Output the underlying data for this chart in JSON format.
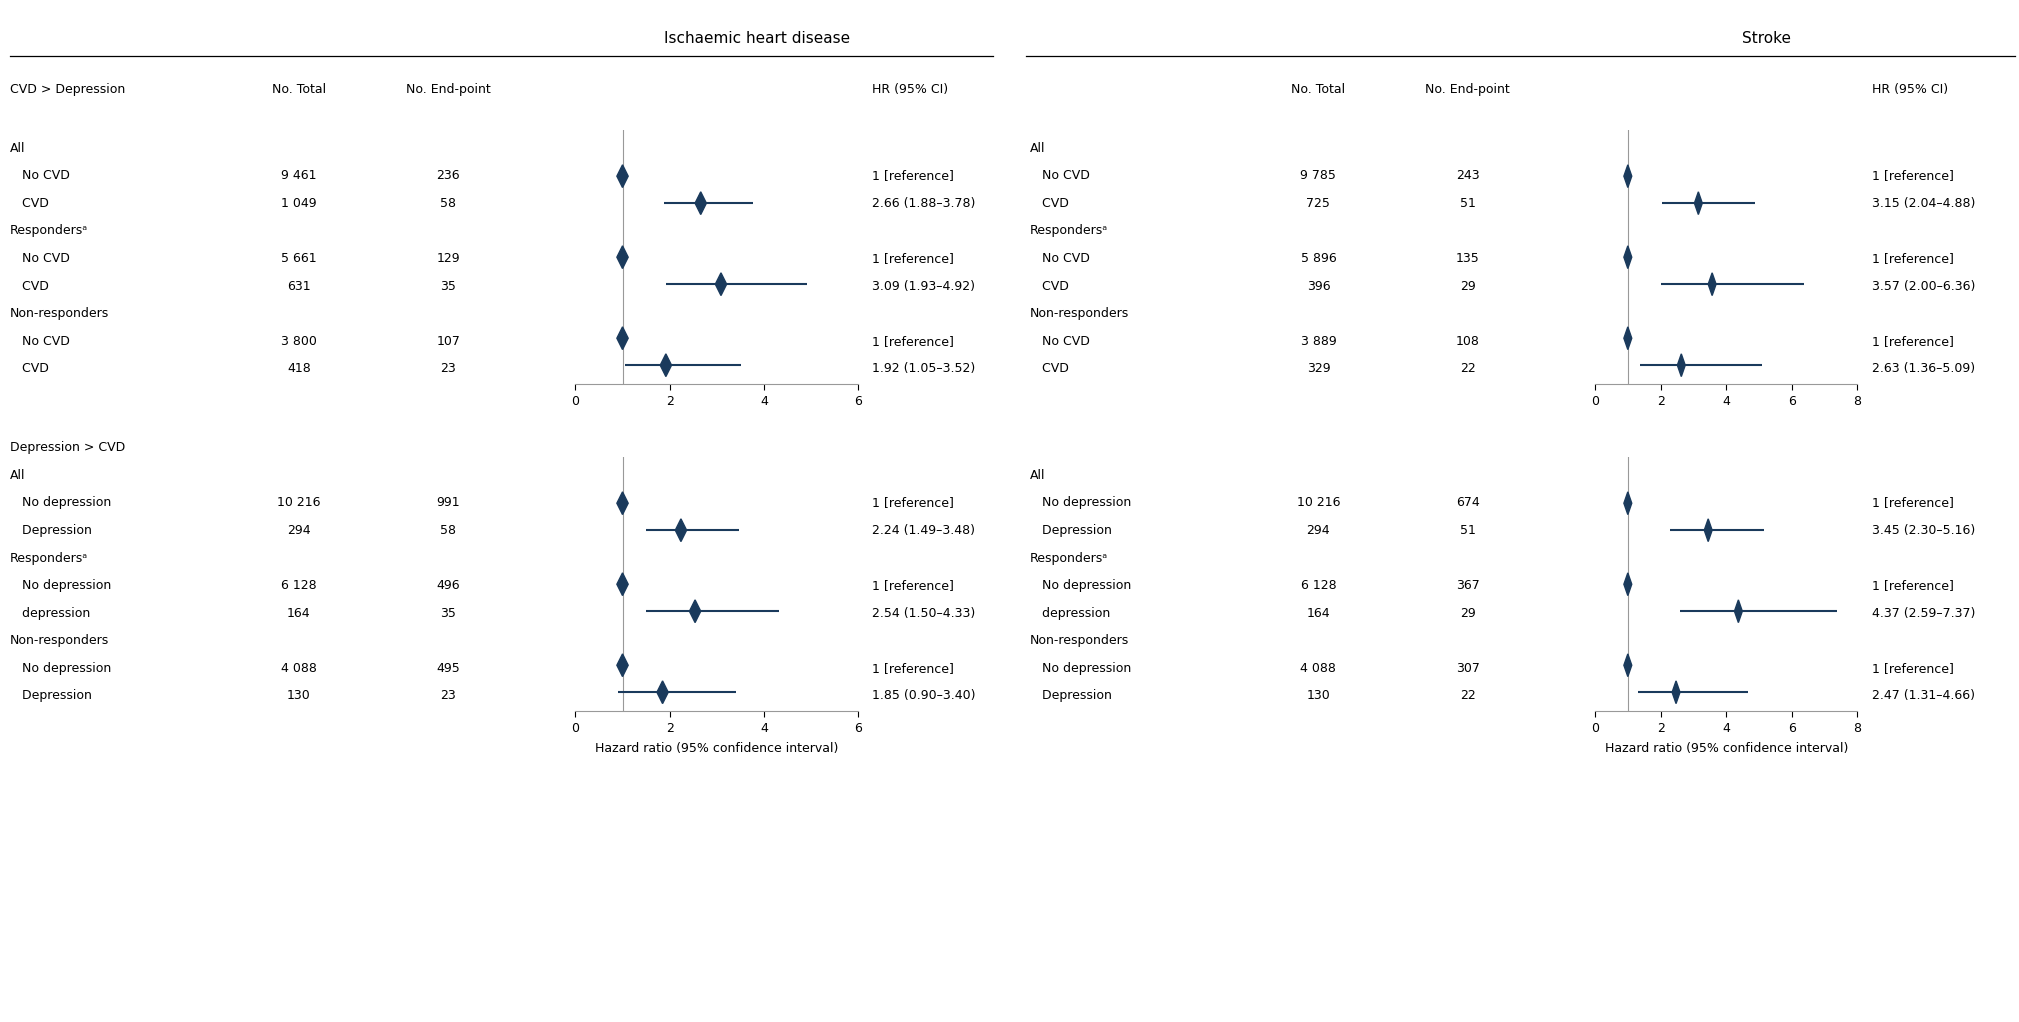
{
  "title_ihd": "Ischaemic heart disease",
  "title_stroke": "Stroke",
  "bg_color": "#ffffff",
  "diamond_color": "#1a3a5c",
  "line_color": "#1a3a5c",
  "text_color": "#000000",
  "axis_color": "#999999",
  "section1_header": "CVD > Depression",
  "section2_header": "Depression > CVD",
  "ihd_rows": [
    {
      "label": "All",
      "indent": 0,
      "no_total": "",
      "no_ep": "",
      "hr": null,
      "lo": null,
      "hi": null,
      "hr_text": "",
      "is_header": true
    },
    {
      "label": "No CVD",
      "indent": 1,
      "no_total": "9 461",
      "no_ep": "236",
      "hr": 1.0,
      "lo": null,
      "hi": null,
      "hr_text": "1 [reference]",
      "is_header": false
    },
    {
      "label": "CVD",
      "indent": 1,
      "no_total": "1 049",
      "no_ep": "58",
      "hr": 2.66,
      "lo": 1.88,
      "hi": 3.78,
      "hr_text": "2.66 (1.88–3.78)",
      "is_header": false
    },
    {
      "label": "Respondersᵃ",
      "indent": 0,
      "no_total": "",
      "no_ep": "",
      "hr": null,
      "lo": null,
      "hi": null,
      "hr_text": "",
      "is_header": true
    },
    {
      "label": "No CVD",
      "indent": 1,
      "no_total": "5 661",
      "no_ep": "129",
      "hr": 1.0,
      "lo": null,
      "hi": null,
      "hr_text": "1 [reference]",
      "is_header": false
    },
    {
      "label": "CVD",
      "indent": 1,
      "no_total": "631",
      "no_ep": "35",
      "hr": 3.09,
      "lo": 1.93,
      "hi": 4.92,
      "hr_text": "3.09 (1.93–4.92)",
      "is_header": false
    },
    {
      "label": "Non-responders",
      "indent": 0,
      "no_total": "",
      "no_ep": "",
      "hr": null,
      "lo": null,
      "hi": null,
      "hr_text": "",
      "is_header": true
    },
    {
      "label": "No CVD",
      "indent": 1,
      "no_total": "3 800",
      "no_ep": "107",
      "hr": 1.0,
      "lo": null,
      "hi": null,
      "hr_text": "1 [reference]",
      "is_header": false
    },
    {
      "label": "CVD",
      "indent": 1,
      "no_total": "418",
      "no_ep": "23",
      "hr": 1.92,
      "lo": 1.05,
      "hi": 3.52,
      "hr_text": "1.92 (1.05–3.52)",
      "is_header": false
    }
  ],
  "ihd_rows2": [
    {
      "label": "All",
      "indent": 0,
      "no_total": "",
      "no_ep": "",
      "hr": null,
      "lo": null,
      "hi": null,
      "hr_text": "",
      "is_header": true
    },
    {
      "label": "No depression",
      "indent": 1,
      "no_total": "10 216",
      "no_ep": "991",
      "hr": 1.0,
      "lo": null,
      "hi": null,
      "hr_text": "1 [reference]",
      "is_header": false
    },
    {
      "label": "Depression",
      "indent": 1,
      "no_total": "294",
      "no_ep": "58",
      "hr": 2.24,
      "lo": 1.49,
      "hi": 3.48,
      "hr_text": "2.24 (1.49–3.48)",
      "is_header": false
    },
    {
      "label": "Respondersᵃ",
      "indent": 0,
      "no_total": "",
      "no_ep": "",
      "hr": null,
      "lo": null,
      "hi": null,
      "hr_text": "",
      "is_header": true
    },
    {
      "label": "No depression",
      "indent": 1,
      "no_total": "6 128",
      "no_ep": "496",
      "hr": 1.0,
      "lo": null,
      "hi": null,
      "hr_text": "1 [reference]",
      "is_header": false
    },
    {
      "label": "depression",
      "indent": 1,
      "no_total": "164",
      "no_ep": "35",
      "hr": 2.54,
      "lo": 1.5,
      "hi": 4.33,
      "hr_text": "2.54 (1.50–4.33)",
      "is_header": false
    },
    {
      "label": "Non-responders",
      "indent": 0,
      "no_total": "",
      "no_ep": "",
      "hr": null,
      "lo": null,
      "hi": null,
      "hr_text": "",
      "is_header": true
    },
    {
      "label": "No depression",
      "indent": 1,
      "no_total": "4 088",
      "no_ep": "495",
      "hr": 1.0,
      "lo": null,
      "hi": null,
      "hr_text": "1 [reference]",
      "is_header": false
    },
    {
      "label": "Depression",
      "indent": 1,
      "no_total": "130",
      "no_ep": "23",
      "hr": 1.85,
      "lo": 0.9,
      "hi": 3.4,
      "hr_text": "1.85 (0.90–3.40)",
      "is_header": false
    }
  ],
  "stroke_rows": [
    {
      "label": "All",
      "indent": 0,
      "no_total": "",
      "no_ep": "",
      "hr": null,
      "lo": null,
      "hi": null,
      "hr_text": "",
      "is_header": true
    },
    {
      "label": "No CVD",
      "indent": 1,
      "no_total": "9 785",
      "no_ep": "243",
      "hr": 1.0,
      "lo": null,
      "hi": null,
      "hr_text": "1 [reference]",
      "is_header": false
    },
    {
      "label": "CVD",
      "indent": 1,
      "no_total": "725",
      "no_ep": "51",
      "hr": 3.15,
      "lo": 2.04,
      "hi": 4.88,
      "hr_text": "3.15 (2.04–4.88)",
      "is_header": false
    },
    {
      "label": "Respondersᵃ",
      "indent": 0,
      "no_total": "",
      "no_ep": "",
      "hr": null,
      "lo": null,
      "hi": null,
      "hr_text": "",
      "is_header": true
    },
    {
      "label": "No CVD",
      "indent": 1,
      "no_total": "5 896",
      "no_ep": "135",
      "hr": 1.0,
      "lo": null,
      "hi": null,
      "hr_text": "1 [reference]",
      "is_header": false
    },
    {
      "label": "CVD",
      "indent": 1,
      "no_total": "396",
      "no_ep": "29",
      "hr": 3.57,
      "lo": 2.0,
      "hi": 6.36,
      "hr_text": "3.57 (2.00–6.36)",
      "is_header": false
    },
    {
      "label": "Non-responders",
      "indent": 0,
      "no_total": "",
      "no_ep": "",
      "hr": null,
      "lo": null,
      "hi": null,
      "hr_text": "",
      "is_header": true
    },
    {
      "label": "No CVD",
      "indent": 1,
      "no_total": "3 889",
      "no_ep": "108",
      "hr": 1.0,
      "lo": null,
      "hi": null,
      "hr_text": "1 [reference]",
      "is_header": false
    },
    {
      "label": "CVD",
      "indent": 1,
      "no_total": "329",
      "no_ep": "22",
      "hr": 2.63,
      "lo": 1.36,
      "hi": 5.09,
      "hr_text": "2.63 (1.36–5.09)",
      "is_header": false
    }
  ],
  "stroke_rows2": [
    {
      "label": "All",
      "indent": 0,
      "no_total": "",
      "no_ep": "",
      "hr": null,
      "lo": null,
      "hi": null,
      "hr_text": "",
      "is_header": true
    },
    {
      "label": "No depression",
      "indent": 1,
      "no_total": "10 216",
      "no_ep": "674",
      "hr": 1.0,
      "lo": null,
      "hi": null,
      "hr_text": "1 [reference]",
      "is_header": false
    },
    {
      "label": "Depression",
      "indent": 1,
      "no_total": "294",
      "no_ep": "51",
      "hr": 3.45,
      "lo": 2.3,
      "hi": 5.16,
      "hr_text": "3.45 (2.30–5.16)",
      "is_header": false
    },
    {
      "label": "Respondersᵃ",
      "indent": 0,
      "no_total": "",
      "no_ep": "",
      "hr": null,
      "lo": null,
      "hi": null,
      "hr_text": "",
      "is_header": true
    },
    {
      "label": "No depression",
      "indent": 1,
      "no_total": "6 128",
      "no_ep": "367",
      "hr": 1.0,
      "lo": null,
      "hi": null,
      "hr_text": "1 [reference]",
      "is_header": false
    },
    {
      "label": "depression",
      "indent": 1,
      "no_total": "164",
      "no_ep": "29",
      "hr": 4.37,
      "lo": 2.59,
      "hi": 7.37,
      "hr_text": "4.37 (2.59–7.37)",
      "is_header": false
    },
    {
      "label": "Non-responders",
      "indent": 0,
      "no_total": "",
      "no_ep": "",
      "hr": null,
      "lo": null,
      "hi": null,
      "hr_text": "",
      "is_header": true
    },
    {
      "label": "No depression",
      "indent": 1,
      "no_total": "4 088",
      "no_ep": "307",
      "hr": 1.0,
      "lo": null,
      "hi": null,
      "hr_text": "1 [reference]",
      "is_header": false
    },
    {
      "label": "Depression",
      "indent": 1,
      "no_total": "130",
      "no_ep": "22",
      "hr": 2.47,
      "lo": 1.31,
      "hi": 4.66,
      "hr_text": "2.47 (1.31–4.66)",
      "is_header": false
    }
  ],
  "ihd_xlim": [
    0,
    6
  ],
  "ihd_xticks": [
    0,
    2,
    4,
    6
  ],
  "stroke_xlim": [
    0,
    8
  ],
  "stroke_xticks": [
    0,
    2,
    4,
    6,
    8
  ],
  "xlabel": "Hazard ratio (95% confidence interval)"
}
